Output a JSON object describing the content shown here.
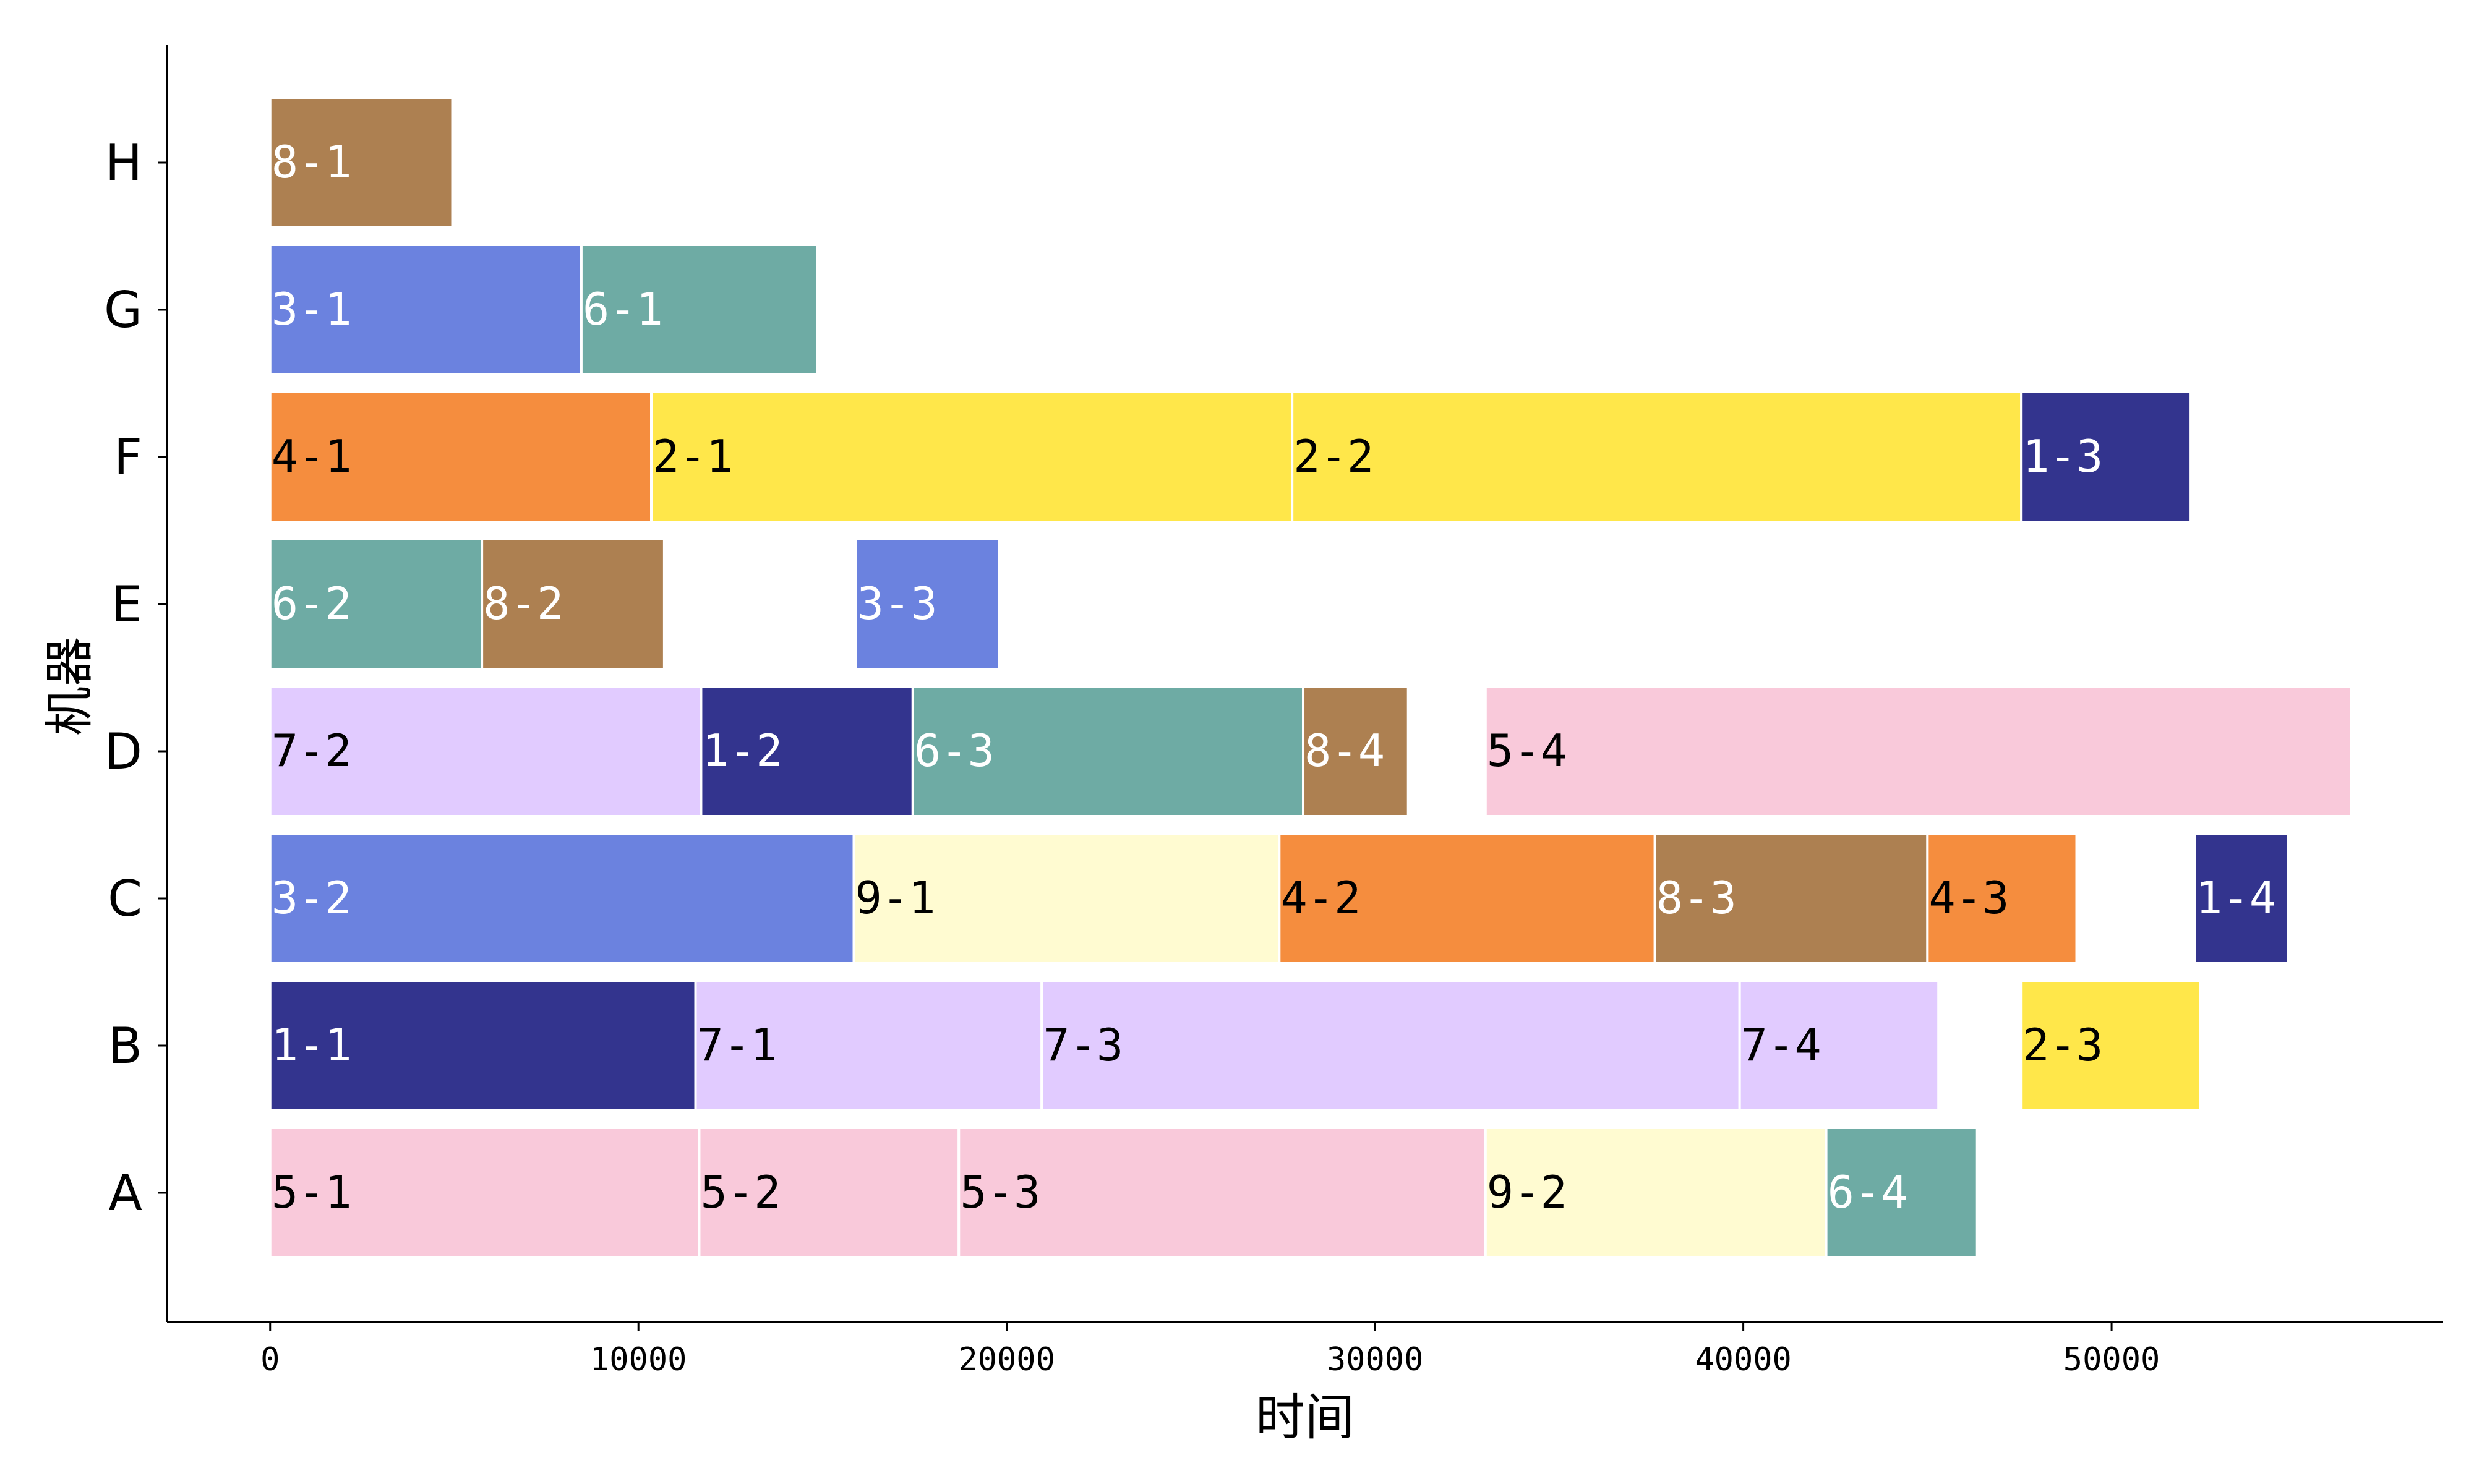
{
  "chart_data": {
    "type": "gantt",
    "title": "",
    "xlabel": "时间",
    "ylabel": "机器",
    "xlim": [
      -2800,
      59000
    ],
    "xticks": [
      0,
      10000,
      20000,
      30000,
      40000,
      50000
    ],
    "xtick_labels": [
      "0",
      "10000",
      "20000",
      "30000",
      "40000",
      "50000"
    ],
    "machines": [
      "A",
      "B",
      "C",
      "D",
      "E",
      "F",
      "G",
      "H"
    ],
    "job_colors": {
      "1": "#33348e",
      "2": "#ffe74a",
      "3": "#6b82df",
      "4": "#f58d3e",
      "5": "#f9c9da",
      "6": "#6eaba4",
      "7": "#e1cbff",
      "8": "#ad8051",
      "9": "#fffbd1"
    },
    "light_text_jobs": [
      "1",
      "3",
      "6",
      "8"
    ],
    "tasks": [
      {
        "machine": "H",
        "job": "8",
        "label": "8-1",
        "start": 0,
        "end": 4950
      },
      {
        "machine": "G",
        "job": "3",
        "label": "3-1",
        "start": 0,
        "end": 8450
      },
      {
        "machine": "G",
        "job": "6",
        "label": "6-1",
        "start": 8450,
        "end": 14850
      },
      {
        "machine": "F",
        "job": "4",
        "label": "4-1",
        "start": 0,
        "end": 10350
      },
      {
        "machine": "F",
        "job": "2",
        "label": "2-1",
        "start": 10350,
        "end": 27750
      },
      {
        "machine": "F",
        "job": "2",
        "label": "2-2",
        "start": 27750,
        "end": 47550
      },
      {
        "machine": "F",
        "job": "1",
        "label": "1-3",
        "start": 47550,
        "end": 52150
      },
      {
        "machine": "E",
        "job": "6",
        "label": "6-2",
        "start": 0,
        "end": 5750
      },
      {
        "machine": "E",
        "job": "8",
        "label": "8-2",
        "start": 5750,
        "end": 10700
      },
      {
        "machine": "E",
        "job": "3",
        "label": "3-3",
        "start": 15900,
        "end": 19800
      },
      {
        "machine": "D",
        "job": "7",
        "label": "7-2",
        "start": 0,
        "end": 11700
      },
      {
        "machine": "D",
        "job": "1",
        "label": "1-2",
        "start": 11700,
        "end": 17450
      },
      {
        "machine": "D",
        "job": "6",
        "label": "6-3",
        "start": 17450,
        "end": 28050
      },
      {
        "machine": "D",
        "job": "8",
        "label": "8-4",
        "start": 28050,
        "end": 30900
      },
      {
        "machine": "D",
        "job": "5",
        "label": "5-4",
        "start": 33000,
        "end": 56500
      },
      {
        "machine": "C",
        "job": "3",
        "label": "3-2",
        "start": 0,
        "end": 15850
      },
      {
        "machine": "C",
        "job": "9",
        "label": "9-1",
        "start": 15850,
        "end": 27400
      },
      {
        "machine": "C",
        "job": "4",
        "label": "4-2",
        "start": 27400,
        "end": 37600
      },
      {
        "machine": "C",
        "job": "8",
        "label": "8-3",
        "start": 37600,
        "end": 45000
      },
      {
        "machine": "C",
        "job": "4",
        "label": "4-3",
        "start": 45000,
        "end": 49050
      },
      {
        "machine": "C",
        "job": "1",
        "label": "1-4",
        "start": 52250,
        "end": 54800
      },
      {
        "machine": "B",
        "job": "1",
        "label": "1-1",
        "start": 0,
        "end": 11550
      },
      {
        "machine": "B",
        "job": "7",
        "label": "7-1",
        "start": 11550,
        "end": 20950
      },
      {
        "machine": "B",
        "job": "7",
        "label": "7-3",
        "start": 20950,
        "end": 39900
      },
      {
        "machine": "B",
        "job": "7",
        "label": "7-4",
        "start": 39900,
        "end": 45300
      },
      {
        "machine": "B",
        "job": "2",
        "label": "2-3",
        "start": 47550,
        "end": 52400
      },
      {
        "machine": "A",
        "job": "5",
        "label": "5-1",
        "start": 0,
        "end": 11650
      },
      {
        "machine": "A",
        "job": "5",
        "label": "5-2",
        "start": 11650,
        "end": 18700
      },
      {
        "machine": "A",
        "job": "5",
        "label": "5-3",
        "start": 18700,
        "end": 33000
      },
      {
        "machine": "A",
        "job": "9",
        "label": "9-2",
        "start": 33000,
        "end": 42250
      },
      {
        "machine": "A",
        "job": "6",
        "label": "6-4",
        "start": 42250,
        "end": 46350
      }
    ]
  }
}
